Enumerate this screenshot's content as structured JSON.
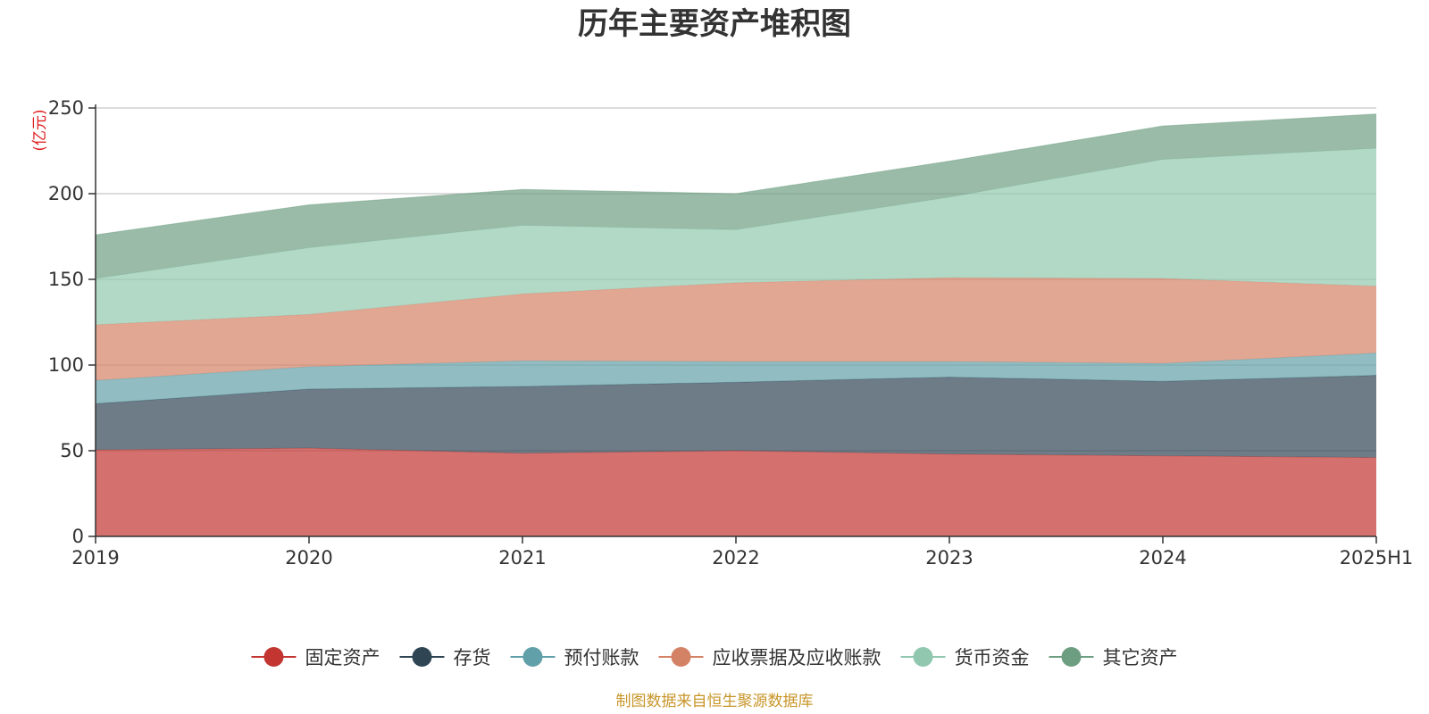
{
  "chart_data": {
    "type": "area",
    "stacked": true,
    "title": "历年主要资产堆积图",
    "unit_label": "(亿元)",
    "categories": [
      "2019",
      "2020",
      "2021",
      "2022",
      "2023",
      "2024",
      "2025H1"
    ],
    "ylim": [
      0,
      250
    ],
    "yticks": [
      0,
      50,
      100,
      150,
      200,
      250
    ],
    "grid": true,
    "legend_position": "bottom",
    "series": [
      {
        "name": "固定资产",
        "color": "#c23531",
        "values": [
          50.5,
          51.5,
          48.5,
          50,
          48,
          47,
          46
        ]
      },
      {
        "name": "存货",
        "color": "#2f4554",
        "values": [
          27,
          34.5,
          39,
          40,
          45,
          43.5,
          48
        ]
      },
      {
        "name": "预付账款",
        "color": "#61a0a8",
        "values": [
          13.5,
          13,
          15,
          12,
          9,
          10.5,
          13
        ]
      },
      {
        "name": "应收票据及应收账款",
        "color": "#d48265",
        "values": [
          32.5,
          30.5,
          39,
          46,
          49,
          49.5,
          39
        ]
      },
      {
        "name": "货币资金",
        "color": "#91c7ae",
        "values": [
          27,
          39,
          40,
          31,
          47,
          69.5,
          80.5
        ]
      },
      {
        "name": "其它资产",
        "color": "#6e9e81",
        "values": [
          25.5,
          25,
          21,
          21,
          21,
          19.5,
          20
        ]
      }
    ],
    "source": "制图数据来自恒生聚源数据库"
  }
}
